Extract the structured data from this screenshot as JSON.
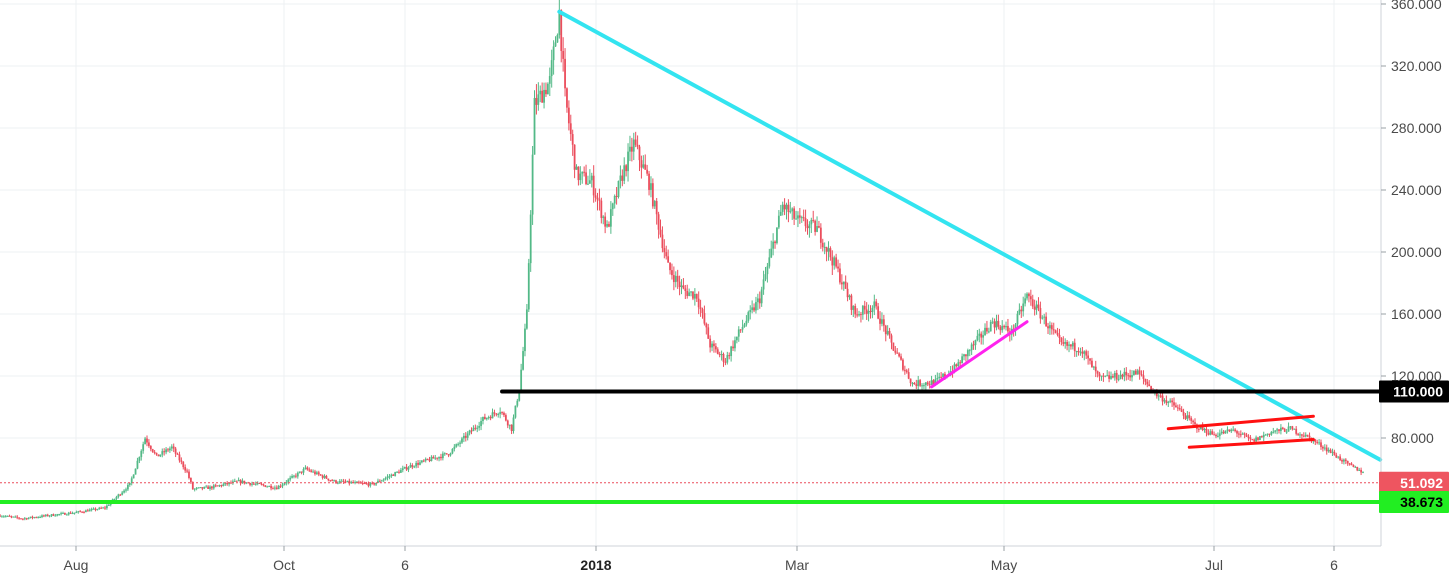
{
  "chart_data": {
    "type": "candlestick",
    "title": "",
    "xlabel": "",
    "ylabel": "",
    "ylim": [
      18,
      362
    ],
    "y_ticks": [
      "80.000",
      "120.000",
      "160.000",
      "200.000",
      "240.000",
      "280.000",
      "320.000",
      "360.000"
    ],
    "x_ticks": [
      {
        "label": "Aug",
        "bold": false
      },
      {
        "label": "Oct",
        "bold": false
      },
      {
        "label": "6",
        "bold": false
      },
      {
        "label": "2018",
        "bold": true
      },
      {
        "label": "Mar",
        "bold": false
      },
      {
        "label": "May",
        "bold": false
      },
      {
        "label": "Jul",
        "bold": false
      },
      {
        "label": "6",
        "bold": false
      }
    ],
    "grid": true,
    "colors": {
      "up": "#53b987",
      "down": "#eb4d5c",
      "trendline": "#33e4f0",
      "support_black": "#000000",
      "support_green": "#22ee22",
      "channel": "#ff1111",
      "wedge_line": "#ff22ee"
    },
    "price_series": {
      "description": "daily close path (approx.), days counted from chart start",
      "points": [
        [
          0,
          30
        ],
        [
          12,
          28
        ],
        [
          25,
          30
        ],
        [
          40,
          32
        ],
        [
          55,
          35
        ],
        [
          68,
          50
        ],
        [
          76,
          80
        ],
        [
          82,
          68
        ],
        [
          90,
          74
        ],
        [
          98,
          58
        ],
        [
          101,
          47
        ],
        [
          110,
          48
        ],
        [
          125,
          52
        ],
        [
          145,
          48
        ],
        [
          160,
          60
        ],
        [
          175,
          52
        ],
        [
          195,
          50
        ],
        [
          215,
          62
        ],
        [
          235,
          70
        ],
        [
          253,
          92
        ],
        [
          262,
          98
        ],
        [
          268,
          86
        ],
        [
          272,
          112
        ],
        [
          276,
          160
        ],
        [
          280,
          295
        ],
        [
          288,
          310
        ],
        [
          293,
          355
        ],
        [
          296,
          300
        ],
        [
          302,
          250
        ],
        [
          310,
          245
        ],
        [
          318,
          215
        ],
        [
          326,
          250
        ],
        [
          332,
          270
        ],
        [
          340,
          245
        ],
        [
          350,
          190
        ],
        [
          358,
          175
        ],
        [
          365,
          172
        ],
        [
          372,
          140
        ],
        [
          380,
          130
        ],
        [
          388,
          150
        ],
        [
          398,
          170
        ],
        [
          410,
          230
        ],
        [
          418,
          220
        ],
        [
          428,
          215
        ],
        [
          438,
          190
        ],
        [
          448,
          160
        ],
        [
          458,
          165
        ],
        [
          468,
          138
        ],
        [
          478,
          115
        ],
        [
          490,
          116
        ],
        [
          500,
          125
        ],
        [
          510,
          140
        ],
        [
          520,
          155
        ],
        [
          530,
          148
        ],
        [
          538,
          172
        ],
        [
          546,
          158
        ],
        [
          556,
          140
        ],
        [
          566,
          138
        ],
        [
          576,
          118
        ],
        [
          586,
          120
        ],
        [
          596,
          122
        ],
        [
          606,
          108
        ],
        [
          616,
          100
        ],
        [
          626,
          88
        ],
        [
          636,
          82
        ],
        [
          646,
          85
        ],
        [
          656,
          78
        ],
        [
          666,
          84
        ],
        [
          676,
          86
        ],
        [
          686,
          80
        ],
        [
          696,
          72
        ],
        [
          706,
          63
        ],
        [
          714,
          58
        ]
      ]
    },
    "annotations": {
      "descending_trendline": {
        "from": [
          293,
          355
        ],
        "to": [
          723,
          66
        ]
      },
      "support_110": {
        "from": [
          263,
          110
        ],
        "to": [
          723,
          110
        ],
        "label": "110.000"
      },
      "support_38": {
        "from": [
          0,
          38.673
        ],
        "to": [
          723,
          38.673
        ],
        "label": "38.673"
      },
      "rising_wedge_line": {
        "from": [
          488,
          113
        ],
        "to": [
          538,
          155
        ]
      },
      "channel_upper": {
        "from": [
          612,
          86
        ],
        "to": [
          688,
          94
        ]
      },
      "channel_lower": {
        "from": [
          623,
          74
        ],
        "to": [
          688,
          79
        ]
      },
      "last_price": {
        "value": 51.092,
        "label": "51.092"
      }
    }
  }
}
